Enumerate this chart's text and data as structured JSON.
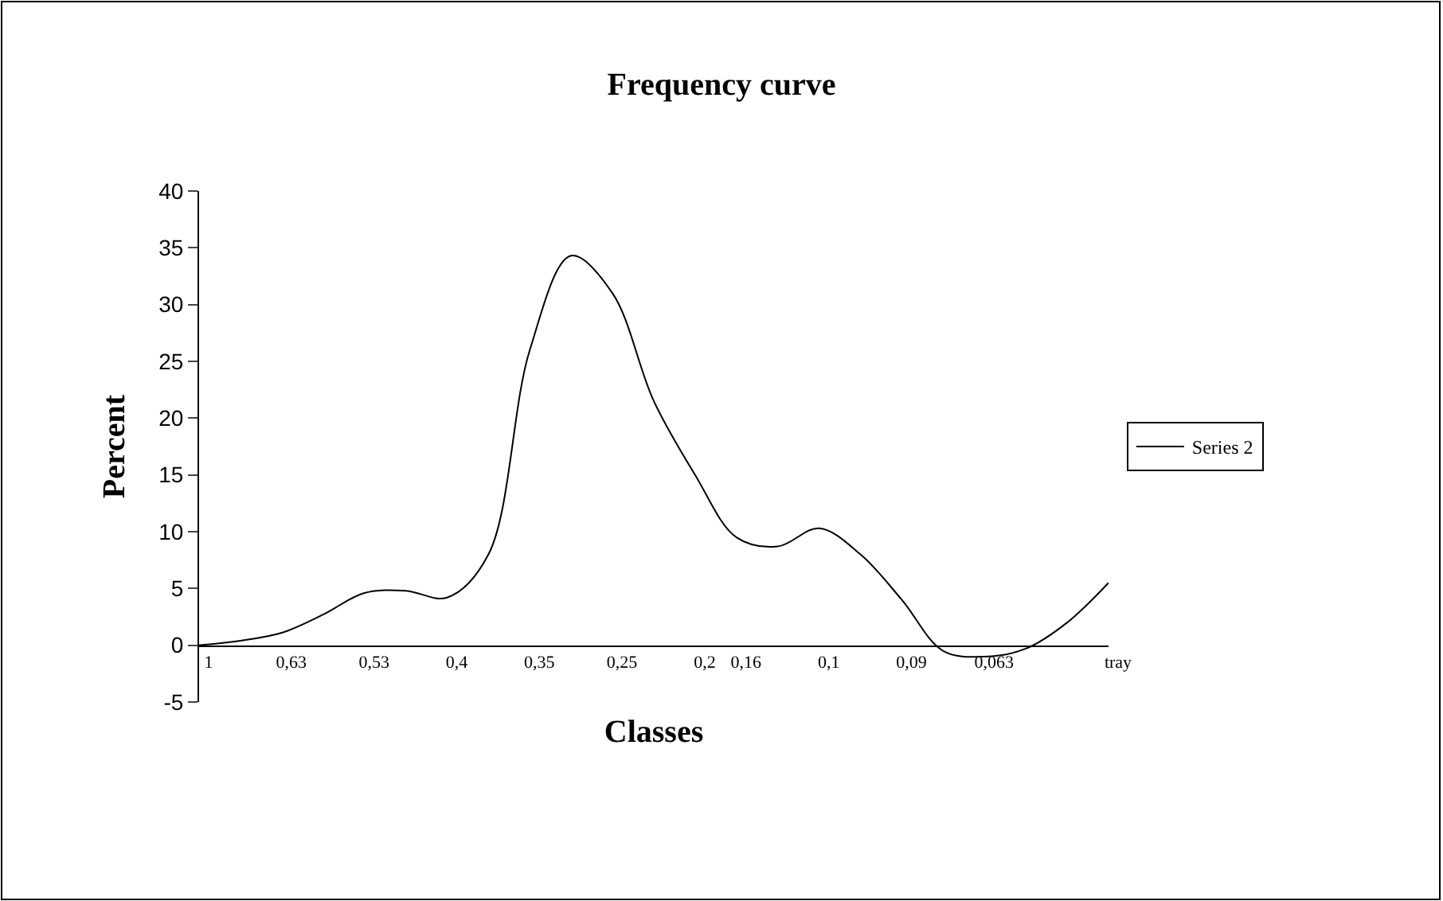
{
  "chart_data": {
    "type": "line",
    "title": "Frequency curve",
    "xlabel": "Classes",
    "ylabel": "Percent",
    "categories": [
      "1",
      null,
      "0,63",
      null,
      "0,53",
      null,
      "0,4",
      null,
      "0,35",
      null,
      "0,25",
      null,
      "0,2",
      "0,16",
      null,
      "0,1",
      null,
      "0,09",
      null,
      "0,063",
      null,
      null,
      "tray"
    ],
    "series": [
      {
        "name": "Series 2",
        "color": "#000000",
        "values": [
          0,
          0.4,
          1.1,
          2.7,
          4.6,
          4.8,
          4.2,
          8,
          26,
          34.3,
          31,
          21.5,
          15,
          9.5,
          8.7,
          10.3,
          8,
          4,
          -0.5,
          -1,
          -0.3,
          2,
          5.5
        ]
      }
    ],
    "ylim": [
      -5,
      40
    ],
    "yticks": [
      -5,
      0,
      5,
      10,
      15,
      20,
      25,
      30,
      35,
      40
    ],
    "legend": "right",
    "marker": "none",
    "line_style": "solid"
  }
}
